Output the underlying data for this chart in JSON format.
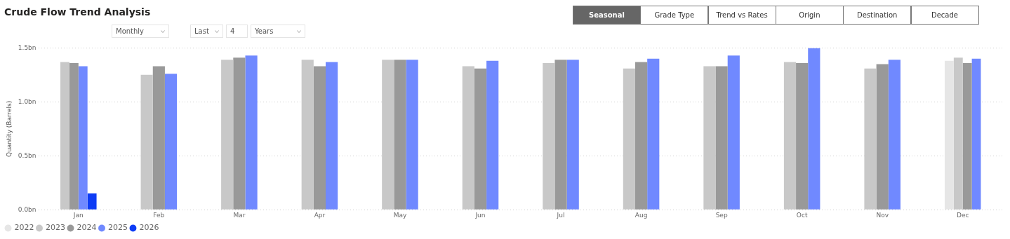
{
  "chart_data": {
    "type": "bar",
    "title": "Crude Flow Trend Analysis",
    "ylabel": "Quantity (Barrels)",
    "annotations": [
      "Monthly",
      "Last",
      "4",
      "Years",
      "Seasonal",
      "Grade Type",
      "Trend vs Rates",
      "Origin",
      "Destination",
      "Decade"
    ],
    "categories": [
      "Jan",
      "Feb",
      "Mar",
      "Apr",
      "May",
      "Jun",
      "Jul",
      "Aug",
      "Sep",
      "Oct",
      "Nov",
      "Dec"
    ],
    "series": [
      {
        "name": "2022",
        "color": "#e6e6e6",
        "values": [
          null,
          null,
          null,
          null,
          null,
          null,
          null,
          null,
          null,
          null,
          null,
          1.38
        ]
      },
      {
        "name": "2023",
        "color": "#c8c8c8",
        "values": [
          1.37,
          1.25,
          1.39,
          1.39,
          1.39,
          1.33,
          1.36,
          1.31,
          1.33,
          1.37,
          1.31,
          1.41
        ]
      },
      {
        "name": "2024",
        "color": "#999999",
        "values": [
          1.36,
          1.33,
          1.41,
          1.33,
          1.39,
          1.31,
          1.39,
          1.37,
          1.33,
          1.36,
          1.35,
          1.36
        ]
      },
      {
        "name": "2025",
        "color": "#7089ff",
        "values": [
          1.33,
          1.26,
          1.43,
          1.37,
          1.39,
          1.38,
          1.39,
          1.4,
          1.43,
          1.5,
          1.39,
          1.4
        ]
      },
      {
        "name": "2026",
        "color": "#0d3cf5",
        "values": [
          0.15,
          null,
          null,
          null,
          null,
          null,
          null,
          null,
          null,
          null,
          null,
          null
        ]
      }
    ],
    "ylim": [
      0,
      1.5
    ],
    "yticks": [
      {
        "value": 0,
        "label": "0.0bn"
      },
      {
        "value": 0.5,
        "label": "0.5bn"
      },
      {
        "value": 1,
        "label": "1.0bn"
      },
      {
        "value": 1.5,
        "label": "1.5bn"
      }
    ],
    "grid": "y",
    "legend": "bottom left"
  }
}
